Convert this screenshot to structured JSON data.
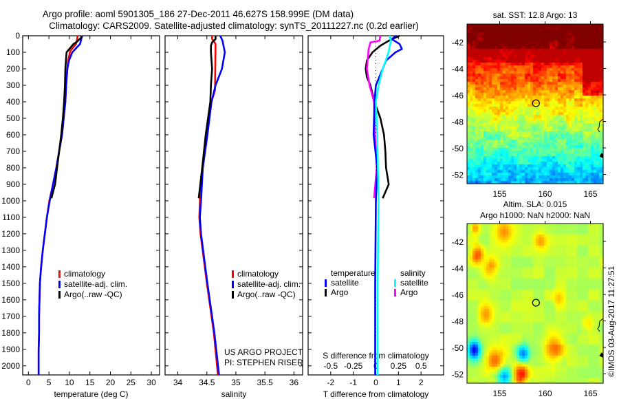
{
  "title": {
    "line1": "Argo profile: aoml 5901305_186 27-Dec-2011 46.627S 158.999E (DM data)",
    "line2": "Climatology: CARS2009. Satellite-adjusted climatology: synTS_20111227.nc (0.2d earlier)"
  },
  "credits": {
    "project": "US ARGO PROJECT",
    "pi": "PI: STEPHEN RISER"
  },
  "timestamp": "©IMOS 03-Aug-2017 11:27:51",
  "colors": {
    "climatology": "#ff0000",
    "satellite": "#0000ff",
    "argo": "#000000",
    "sal_satellite": "#00ffff",
    "sal_argo": "#ff00ff"
  },
  "chart_data": [
    {
      "id": "temperature",
      "type": "line",
      "xlabel": "temperature (deg C)",
      "xlim": [
        -1.4,
        32
      ],
      "xticks": [
        0,
        5,
        10,
        15,
        20,
        25,
        30
      ],
      "ylim": [
        0,
        2055
      ],
      "yticks": [
        0,
        100,
        200,
        300,
        400,
        500,
        600,
        700,
        800,
        900,
        1000,
        1100,
        1200,
        1300,
        1400,
        1500,
        1600,
        1700,
        1800,
        1900,
        2000
      ],
      "yreversed": true,
      "legend": [
        "climatology",
        "satellite-adj. clim.",
        "Argo(..raw -QC)"
      ],
      "series": [
        {
          "name": "climatology",
          "color": "#ff0000",
          "depth": [
            0,
            20,
            50,
            92,
            150,
            200,
            300,
            400,
            500,
            600,
            700,
            800,
            900,
            1000,
            1100,
            1200,
            1300,
            1400,
            1500,
            1600,
            1700,
            1800,
            1900,
            2055
          ],
          "values": [
            12.0,
            11.9,
            11.6,
            10.2,
            9.7,
            9.5,
            9.2,
            9.0,
            8.6,
            8.2,
            7.5,
            6.8,
            6.0,
            5.1,
            4.5,
            4.0,
            3.5,
            3.1,
            2.8,
            2.7,
            2.6,
            2.6,
            2.5,
            2.5
          ]
        },
        {
          "name": "satellite-adj. clim.",
          "color": "#0000ff",
          "depth": [
            0,
            20,
            50,
            100,
            150,
            200,
            300,
            400,
            500,
            600,
            700,
            800,
            900,
            1000,
            1100,
            1200,
            1300,
            1400,
            1500,
            1600,
            1700,
            1800,
            1900,
            2055
          ],
          "values": [
            13.1,
            12.9,
            12.6,
            10.7,
            9.9,
            9.5,
            9.2,
            9.0,
            8.6,
            8.2,
            7.5,
            6.8,
            6.0,
            5.2,
            4.5,
            4.0,
            3.5,
            3.1,
            2.8,
            2.7,
            2.6,
            2.6,
            2.5,
            2.5
          ]
        },
        {
          "name": "Argo(..raw -QC)",
          "color": "#000000",
          "depth": [
            0,
            10,
            35,
            50,
            100,
            200,
            300,
            400,
            500,
            600,
            700,
            800,
            900,
            985
          ],
          "values": [
            12.9,
            12.9,
            11.9,
            11.0,
            9.3,
            9.0,
            8.9,
            8.7,
            8.4,
            8.0,
            7.5,
            7.0,
            6.5,
            5.6
          ]
        }
      ]
    },
    {
      "id": "salinity",
      "type": "line",
      "xlabel": "salinity",
      "xlim": [
        33.78,
        36.15
      ],
      "xticks": [
        34,
        34.5,
        35,
        35.5,
        36
      ],
      "ylim": [
        0,
        2055
      ],
      "yreversed": true,
      "legend": [
        "climatology",
        "satellite-adj. clim.",
        "Argo(..raw -QC)"
      ],
      "series": [
        {
          "name": "climatology",
          "color": "#ff0000",
          "depth": [
            0,
            20,
            50,
            330,
            400,
            600,
            800,
            1000,
            1100,
            1200,
            1500,
            1800,
            2055
          ],
          "values": [
            34.59,
            34.59,
            34.65,
            34.64,
            34.58,
            34.5,
            34.42,
            34.38,
            34.37,
            34.39,
            34.5,
            34.62,
            34.69
          ]
        },
        {
          "name": "satellite-adj. clim.",
          "color": "#0000ff",
          "depth": [
            0,
            30,
            100,
            200,
            300,
            400,
            600,
            800,
            1000,
            1100,
            1200,
            1500,
            1800,
            2055
          ],
          "values": [
            34.73,
            34.77,
            34.81,
            34.76,
            34.65,
            34.58,
            34.51,
            34.43,
            34.4,
            34.38,
            34.4,
            34.51,
            34.63,
            34.71
          ]
        },
        {
          "name": "Argo(..raw -QC)",
          "color": "#000000",
          "depth": [
            0,
            20,
            40,
            60,
            100,
            200,
            300,
            400,
            600,
            800,
            985
          ],
          "values": [
            34.65,
            34.65,
            34.59,
            34.57,
            34.57,
            34.59,
            34.57,
            34.56,
            34.48,
            34.42,
            34.36
          ]
        }
      ]
    },
    {
      "id": "difference",
      "type": "line",
      "xlabel": "T difference from climatology",
      "xlim": [
        -3,
        3
      ],
      "xticks": [
        -2,
        -1,
        0,
        1,
        2
      ],
      "s_label": "S difference from climatology",
      "s_xlim": [
        -0.75,
        0.75
      ],
      "s_xticks": [
        -0.5,
        -0.25,
        0,
        0.25,
        0.5
      ],
      "ylim": [
        0,
        2055
      ],
      "yreversed": true,
      "legend": {
        "temperature": "temperature",
        "salinity": "salinity",
        "satellite": "satellite",
        "argo": "Argo"
      },
      "series": [
        {
          "name": "T Argo",
          "axis": "T",
          "color": "#000000",
          "depth": [
            0,
            30,
            60,
            100,
            150,
            200,
            250,
            300,
            400,
            500,
            600,
            700,
            800,
            900,
            985
          ],
          "values": [
            1.05,
            0.57,
            0.2,
            -0.15,
            -0.4,
            -0.45,
            -0.4,
            -0.24,
            -0.06,
            0.2,
            0.36,
            0.42,
            0.45,
            0.57,
            0.3
          ]
        },
        {
          "name": "S Argo",
          "axis": "S",
          "color": "#ff00ff",
          "depth": [
            0,
            30,
            40,
            80,
            200,
            300,
            400,
            600,
            800,
            985
          ],
          "values": [
            0.05,
            0.04,
            -0.06,
            -0.08,
            -0.1,
            -0.07,
            -0.02,
            -0.01,
            0.01,
            -0.02
          ]
        },
        {
          "name": "T satellite",
          "axis": "T",
          "color": "#0000ff",
          "depth": [
            0,
            20,
            50,
            80,
            100,
            150,
            200,
            300,
            400,
            600,
            800,
            1000,
            1500,
            2055
          ],
          "values": [
            0.9,
            0.7,
            1.05,
            1.15,
            0.87,
            0.45,
            0.3,
            0.0,
            -0.06,
            -0.1,
            0.06,
            0.0,
            -0.03,
            -0.03
          ]
        },
        {
          "name": "S satellite",
          "axis": "S",
          "color": "#00ffff",
          "depth": [
            0,
            30,
            100,
            150,
            200,
            300,
            400,
            600,
            1000,
            1500,
            2055
          ],
          "values": [
            0.15,
            0.165,
            0.14,
            0.11,
            0.075,
            0.03,
            0.0,
            0.015,
            0.03,
            0.02,
            0.02
          ]
        }
      ]
    },
    {
      "id": "sst_map",
      "type": "heatmap",
      "title": "sat. SST: 12.8 Argo: 13",
      "xlim": [
        151.4,
        166.4
      ],
      "ylim": [
        -52.7,
        -40.65
      ],
      "xticks": [
        155,
        160,
        165
      ],
      "yticks": [
        -42,
        -44,
        -46,
        -48,
        -50,
        -52
      ],
      "argo_position": [
        158.999,
        -46.627
      ]
    },
    {
      "id": "sla_map",
      "type": "heatmap",
      "title": "Altim. SLA: 0.015",
      "subtitle": "Argo h1000: NaN h2000: NaN",
      "xlim": [
        151.4,
        166.4
      ],
      "ylim": [
        -52.7,
        -40.65
      ],
      "xticks": [
        155,
        160,
        165
      ],
      "yticks": [
        -42,
        -44,
        -46,
        -48,
        -50,
        -52
      ],
      "argo_position": [
        158.999,
        -46.627
      ]
    }
  ]
}
